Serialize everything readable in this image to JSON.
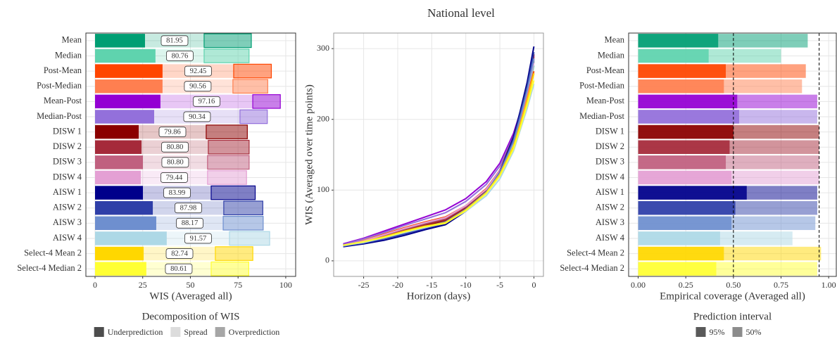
{
  "title": "National level",
  "chart_data": [
    {
      "type": "bar",
      "stacked": true,
      "categories": [
        "Mean",
        "Median",
        "Post-Mean",
        "Post-Median",
        "Mean-Post",
        "Median-Post",
        "DISW 1",
        "DISW 2",
        "DISW 3",
        "DISW 4",
        "AISW 1",
        "AISW 2",
        "AISW 3",
        "AISW 4",
        "Select-4 Mean 2",
        "Select-4 Median 2"
      ],
      "colors": [
        "#009e73",
        "#5fd3ae",
        "#ff4500",
        "#ff7f50",
        "#9400d3",
        "#9370db",
        "#8b0000",
        "#a52a3a",
        "#c0607f",
        "#e4a0d4",
        "#00008b",
        "#2f3fa8",
        "#6e8fcf",
        "#add8e6",
        "#ffd700",
        "#ffff33"
      ],
      "series": [
        {
          "name": "Underprediction",
          "color": "#4d4d4d",
          "opacity": 1,
          "values": [
            26.2,
            31.7,
            35.4,
            35.4,
            34.3,
            31.0,
            22.9,
            24.4,
            25.1,
            24.0,
            25.1,
            30.3,
            32.1,
            37.6,
            25.5,
            26.9
          ]
        },
        {
          "name": "Spread",
          "color": "#dcdcdc",
          "opacity": 0.22,
          "values": [
            31.0,
            25.5,
            37.3,
            36.9,
            48.4,
            45.0,
            35.4,
            35.0,
            33.9,
            35.0,
            35.8,
            37.2,
            35.1,
            32.9,
            37.6,
            34.0
          ]
        },
        {
          "name": "Overprediction",
          "color": "#a6a6a6",
          "opacity": 0.5,
          "values": [
            24.75,
            23.56,
            19.75,
            18.26,
            14.46,
            14.34,
            21.56,
            21.4,
            21.8,
            20.44,
            23.09,
            20.48,
            20.97,
            21.07,
            19.64,
            19.71
          ]
        }
      ],
      "totals": [
        81.95,
        80.76,
        92.45,
        90.56,
        97.16,
        90.34,
        79.86,
        80.8,
        80.8,
        79.44,
        83.99,
        87.98,
        88.17,
        91.57,
        82.74,
        80.61
      ],
      "totals_labels": [
        "81.95",
        "80.76",
        "92.45",
        "90.56",
        "97.16",
        "90.34",
        "79.86",
        "80.80",
        "80.80",
        "79.44",
        "83.99",
        "87.98",
        "88.17",
        "91.57",
        "82.74",
        "80.61"
      ],
      "xlim": [
        -4.8,
        105.2
      ],
      "xticks": [
        0,
        25,
        50,
        75,
        100
      ],
      "grid": true,
      "x_label": "WIS (Averaged all)",
      "legend_title": "Decomposition of WIS"
    },
    {
      "type": "line",
      "x": [
        -28,
        -25,
        -22,
        -19,
        -16,
        -13,
        -10,
        -7,
        -5,
        -3,
        -2,
        -1,
        0
      ],
      "series": [
        {
          "name": "Mean",
          "color": "#009e73",
          "values": [
            22,
            28,
            36,
            44,
            52,
            58,
            76,
            100,
            128,
            172,
            205,
            240,
            282
          ]
        },
        {
          "name": "Median",
          "color": "#5fd3ae",
          "values": [
            22,
            27,
            35,
            43,
            50,
            56,
            74,
            98,
            124,
            168,
            200,
            236,
            276
          ]
        },
        {
          "name": "Post-Mean",
          "color": "#ff4500",
          "values": [
            23,
            29,
            38,
            47,
            55,
            62,
            78,
            102,
            128,
            170,
            200,
            232,
            268
          ]
        },
        {
          "name": "Post-Median",
          "color": "#ff7f50",
          "values": [
            23,
            29,
            37,
            46,
            54,
            61,
            77,
            100,
            126,
            168,
            198,
            230,
            265
          ]
        },
        {
          "name": "Mean-Post",
          "color": "#9400d3",
          "values": [
            24,
            32,
            42,
            52,
            62,
            72,
            88,
            112,
            138,
            180,
            210,
            245,
            290
          ]
        },
        {
          "name": "Median-Post",
          "color": "#9370db",
          "values": [
            23,
            31,
            40,
            50,
            59,
            68,
            84,
            108,
            134,
            176,
            206,
            240,
            285
          ]
        },
        {
          "name": "DISW 1",
          "color": "#8b0000",
          "values": [
            22,
            27,
            34,
            42,
            50,
            57,
            75,
            100,
            128,
            175,
            208,
            245,
            292
          ]
        },
        {
          "name": "DISW 2",
          "color": "#a52a3a",
          "values": [
            22,
            28,
            35,
            43,
            51,
            58,
            76,
            100,
            128,
            174,
            207,
            243,
            288
          ]
        },
        {
          "name": "DISW 3",
          "color": "#c0607f",
          "values": [
            22,
            28,
            36,
            45,
            53,
            60,
            77,
            101,
            128,
            172,
            204,
            240,
            284
          ]
        },
        {
          "name": "DISW 4",
          "color": "#e4a0d4",
          "values": [
            22,
            28,
            37,
            46,
            54,
            61,
            78,
            101,
            127,
            170,
            202,
            238,
            280
          ]
        },
        {
          "name": "AISW 1",
          "color": "#00008b",
          "values": [
            20,
            24,
            29,
            36,
            44,
            51,
            70,
            96,
            125,
            175,
            212,
            252,
            303
          ]
        },
        {
          "name": "AISW 2",
          "color": "#2f3fa8",
          "values": [
            21,
            25,
            31,
            38,
            46,
            53,
            72,
            97,
            125,
            172,
            208,
            246,
            295
          ]
        },
        {
          "name": "AISW 3",
          "color": "#6e8fcf",
          "values": [
            21,
            26,
            32,
            40,
            48,
            55,
            73,
            97,
            124,
            168,
            202,
            240,
            286
          ]
        },
        {
          "name": "AISW 4",
          "color": "#add8e6",
          "values": [
            22,
            26,
            33,
            40,
            47,
            54,
            70,
            92,
            116,
            155,
            185,
            215,
            250
          ]
        },
        {
          "name": "Select-4 Mean 2",
          "color": "#ffd700",
          "values": [
            22,
            27,
            34,
            42,
            49,
            54,
            72,
            96,
            122,
            162,
            192,
            225,
            265
          ]
        },
        {
          "name": "Select-4 Median 2",
          "color": "#ffff33",
          "values": [
            22,
            27,
            33,
            41,
            48,
            53,
            71,
            95,
            120,
            158,
            188,
            220,
            255
          ]
        }
      ],
      "xlim": [
        -29.4,
        1.4
      ],
      "xticks": [
        -25,
        -20,
        -15,
        -10,
        -5,
        0
      ],
      "ylim": [
        -22,
        322
      ],
      "yticks": [
        0,
        100,
        200,
        300
      ],
      "grid": true,
      "x_label": "Horizon (days)",
      "y_label": "WIS (Averaged over time points)"
    },
    {
      "type": "bar",
      "stacked": false,
      "categories": [
        "Mean",
        "Median",
        "Post-Mean",
        "Post-Median",
        "Mean-Post",
        "Median-Post",
        "DISW 1",
        "DISW 2",
        "DISW 3",
        "DISW 4",
        "AISW 1",
        "AISW 2",
        "AISW 3",
        "AISW 4",
        "Select-4 Mean 2",
        "Select-4 Median 2"
      ],
      "colors": [
        "#009e73",
        "#5fd3ae",
        "#ff4500",
        "#ff7f50",
        "#9400d3",
        "#9370db",
        "#8b0000",
        "#a52a3a",
        "#c0607f",
        "#e4a0d4",
        "#00008b",
        "#2f3fa8",
        "#6e8fcf",
        "#add8e6",
        "#ffd700",
        "#ffff33"
      ],
      "series": [
        {
          "name": "95%",
          "color": "#595959",
          "opacity": 0.5,
          "values": [
            0.89,
            0.75,
            0.88,
            0.86,
            0.94,
            0.94,
            0.95,
            0.95,
            0.95,
            0.95,
            0.94,
            0.94,
            0.93,
            0.81,
            0.96,
            0.94
          ]
        },
        {
          "name": "50%",
          "color": "#8c8c8c",
          "opacity": 0.88,
          "values": [
            0.42,
            0.37,
            0.46,
            0.45,
            0.52,
            0.53,
            0.5,
            0.48,
            0.46,
            0.49,
            0.57,
            0.51,
            0.49,
            0.43,
            0.45,
            0.41
          ]
        }
      ],
      "vlines": [
        0.5,
        0.95
      ],
      "xlim": [
        -0.05,
        1.04
      ],
      "xticks": [
        {
          "value": 0,
          "label": "0.00"
        },
        0.25,
        {
          "value": 0.5,
          "label": "0.50"
        },
        0.75,
        {
          "value": 1,
          "label": "1.00"
        }
      ],
      "grid": true,
      "x_label": "Empirical coverage (Averaged all)",
      "legend_title": "Prediction interval"
    }
  ]
}
